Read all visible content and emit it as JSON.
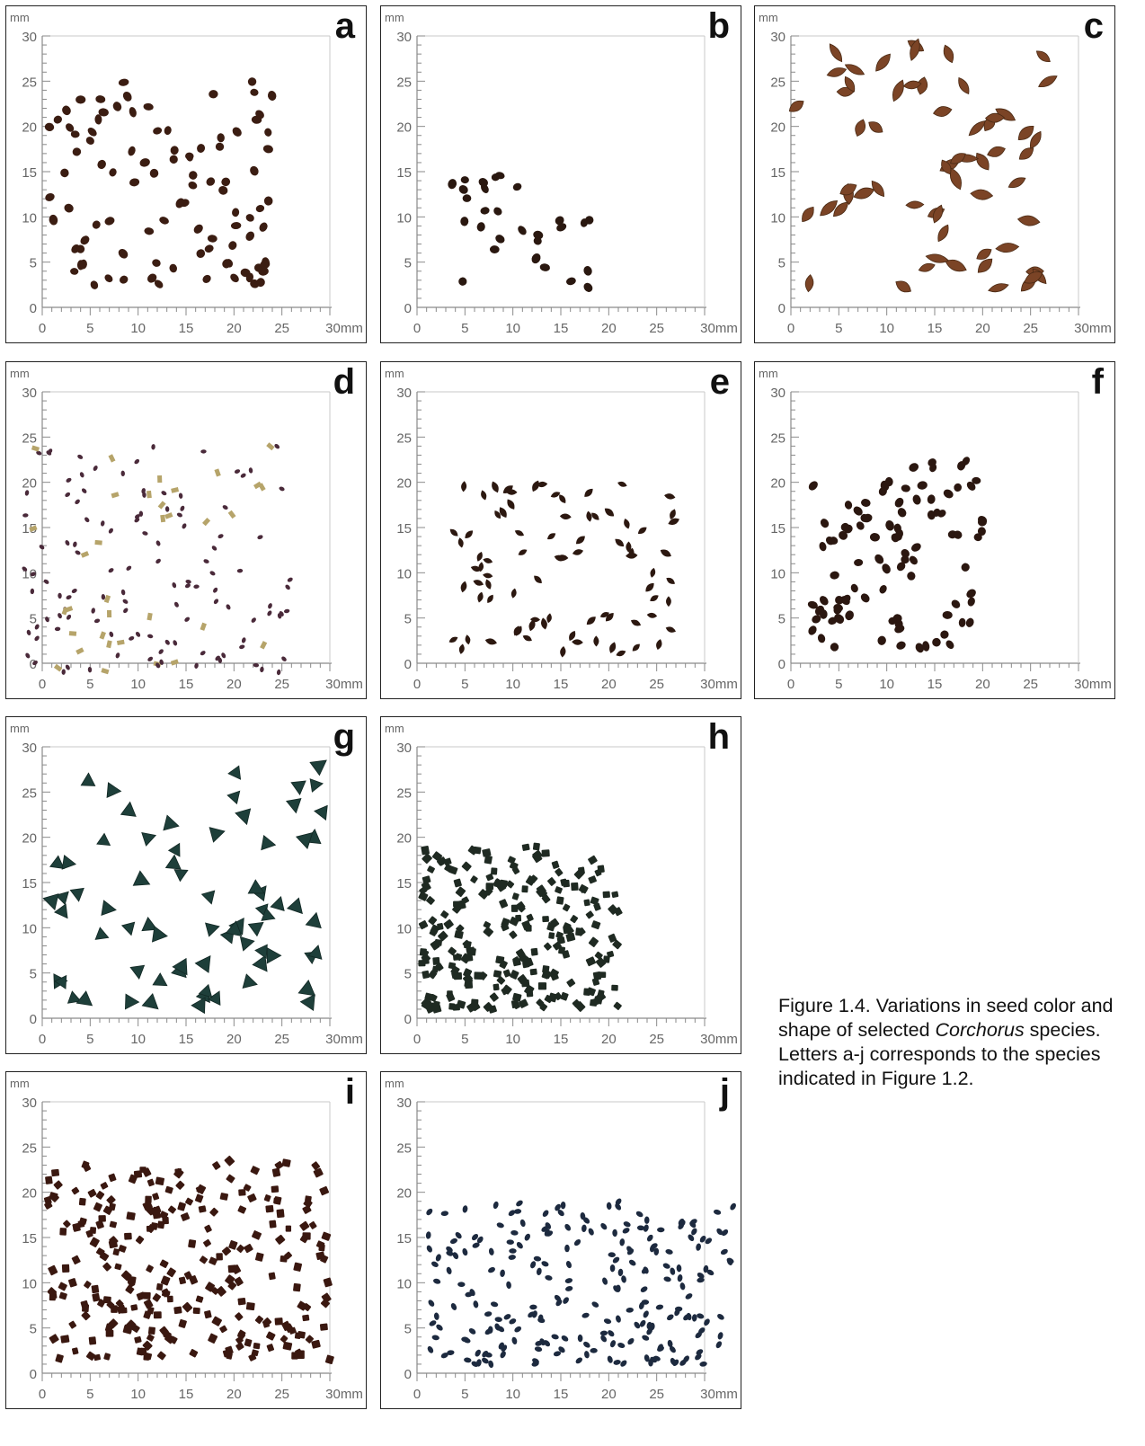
{
  "figure": {
    "axis_unit_top": "mm",
    "axis_unit_right": "30mm",
    "y_ticks": [
      "0",
      "5",
      "10",
      "15",
      "20",
      "25",
      "30"
    ],
    "x_ticks": [
      "0",
      "5",
      "10",
      "15",
      "20",
      "25"
    ],
    "panels": [
      {
        "id": "a",
        "letter": "a",
        "seed_color": "#3b1d12",
        "seed_shape": "round",
        "seed_count": 95,
        "extent": {
          "xmin": 0.5,
          "xmax": 24,
          "ymin": 2,
          "ymax": 25
        }
      },
      {
        "id": "b",
        "letter": "b",
        "seed_color": "#2a1810",
        "seed_shape": "round",
        "seed_count": 28,
        "extent": {
          "xmin": 3.5,
          "xmax": 18,
          "ymin": 2,
          "ymax": 15
        }
      },
      {
        "id": "c",
        "letter": "c",
        "seed_color": "#7b4426",
        "seed_shape": "pointed-large",
        "seed_count": 60,
        "extent": {
          "xmin": 0.5,
          "xmax": 29,
          "ymin": 1,
          "ymax": 29
        }
      },
      {
        "id": "d",
        "letter": "d",
        "seed_color": "#4a2a3a",
        "seed_color_2": "#b6a46a",
        "seed_shape": "mixed",
        "seed_count": 150,
        "extent": {
          "xmin": -2,
          "xmax": 26,
          "ymin": -1,
          "ymax": 24
        }
      },
      {
        "id": "e",
        "letter": "e",
        "seed_color": "#2c1810",
        "seed_shape": "pointed",
        "seed_count": 80,
        "extent": {
          "xmin": 3.5,
          "xmax": 28,
          "ymin": 1,
          "ymax": 20
        }
      },
      {
        "id": "f",
        "letter": "f",
        "seed_color": "#2b1710",
        "seed_shape": "round",
        "seed_count": 95,
        "extent": {
          "xmin": 2,
          "xmax": 20,
          "ymin": 1.5,
          "ymax": 22.5
        }
      },
      {
        "id": "g",
        "letter": "g",
        "seed_color": "#1e3f3a",
        "seed_shape": "pyramid",
        "seed_count": 70,
        "extent": {
          "xmin": 1,
          "xmax": 30,
          "ymin": 1.5,
          "ymax": 28
        }
      },
      {
        "id": "h",
        "letter": "h",
        "seed_color": "#1f2a22",
        "seed_shape": "square",
        "seed_count": 230,
        "extent": {
          "xmin": 0.5,
          "xmax": 21,
          "ymin": 1,
          "ymax": 19
        }
      },
      {
        "id": "i",
        "letter": "i",
        "seed_color": "#3a1810",
        "seed_shape": "square",
        "seed_count": 260,
        "extent": {
          "xmin": 0.5,
          "xmax": 30,
          "ymin": 1.5,
          "ymax": 23.5
        }
      },
      {
        "id": "j",
        "letter": "j",
        "seed_color": "#1d2a3f",
        "seed_shape": "oval",
        "seed_count": 230,
        "extent": {
          "xmin": 1,
          "xmax": 33,
          "ymin": 1,
          "ymax": 19
        }
      }
    ]
  },
  "caption": {
    "line1": "Figure 1.4.  Variations in seed color and shape of selected ",
    "italic": "Corchorus",
    "line2": " species. Letters a-j corresponds to the species indicated in Figure 1.2."
  }
}
